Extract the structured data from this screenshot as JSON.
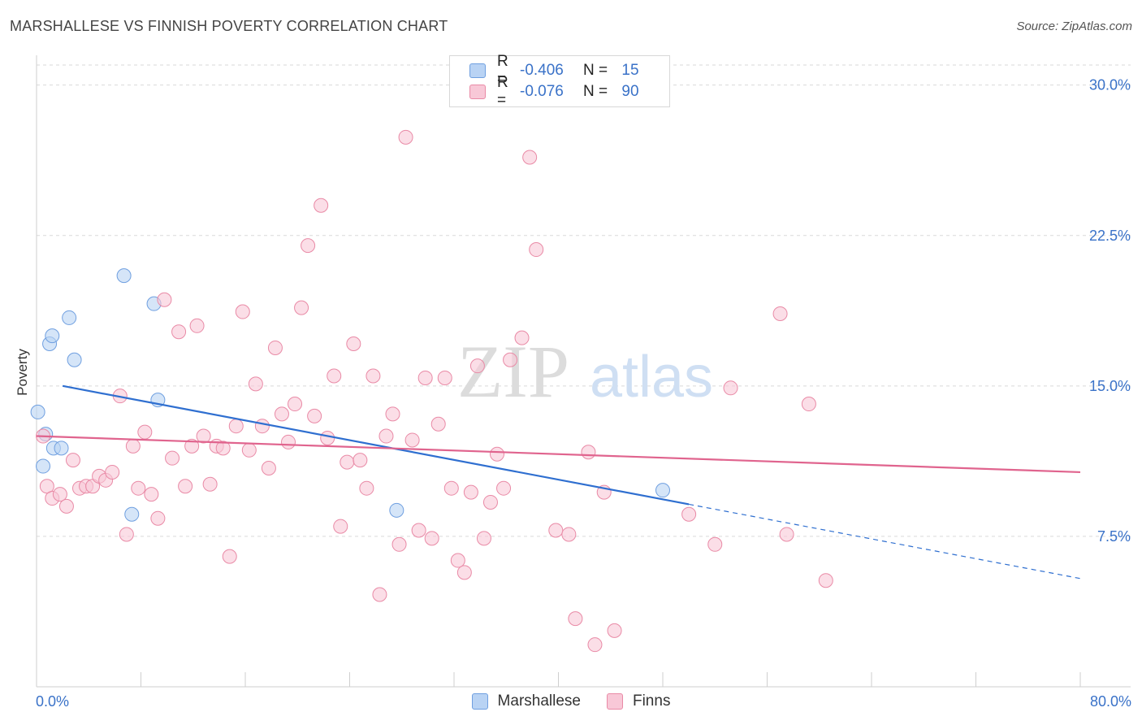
{
  "header": {
    "title": "MARSHALLESE VS FINNISH POVERTY CORRELATION CHART",
    "source": "Source: ZipAtlas.com"
  },
  "watermark": {
    "zip": "ZIP",
    "atlas": "atlas"
  },
  "legend": {
    "rows": [
      {
        "r_label": "R =",
        "r_value": "-0.406",
        "n_label": "N =",
        "n_value": "15",
        "color": "#a9c7f0",
        "border": "#6f9fe0"
      },
      {
        "r_label": "R =",
        "r_value": "-0.076",
        "n_label": "N =",
        "n_value": "90",
        "color": "#f5b8cc",
        "border": "#e8849f"
      }
    ]
  },
  "colors": {
    "blue_fill": "#b9d3f4",
    "blue_stroke": "#6f9fe0",
    "blue_line": "#2f6fd0",
    "pink_fill": "#f8c8d7",
    "pink_stroke": "#e98aa6",
    "pink_line": "#e0648e",
    "grid": "#d9d9d9",
    "axis_label": "#3a72c8"
  },
  "chart_data": {
    "type": "scatter",
    "title": "MARSHALLESE VS FINNISH POVERTY CORRELATION CHART",
    "xlabel": "",
    "ylabel": "Poverty",
    "xlim": [
      0,
      80
    ],
    "ylim": [
      0,
      31
    ],
    "x_tick_labels": [
      "0.0%",
      "80.0%"
    ],
    "y_ticks": [
      7.5,
      15.0,
      22.5,
      30.0
    ],
    "y_tick_labels": [
      "7.5%",
      "15.0%",
      "22.5%",
      "30.0%"
    ],
    "grid": true,
    "legend_position": "bottom",
    "series": [
      {
        "name": "Marshallese",
        "r": -0.406,
        "n": 15,
        "trend": {
          "x_solid": [
            2.0,
            50.0
          ],
          "y_solid": [
            15.0,
            9.1
          ],
          "x_dash": [
            50.0,
            80.0
          ],
          "y_dash": [
            9.1,
            5.4
          ]
        },
        "points": [
          [
            0.1,
            13.7
          ],
          [
            0.5,
            11.0
          ],
          [
            0.7,
            12.6
          ],
          [
            1.0,
            17.1
          ],
          [
            1.2,
            17.5
          ],
          [
            1.3,
            11.9
          ],
          [
            1.9,
            11.9
          ],
          [
            2.5,
            18.4
          ],
          [
            2.9,
            16.3
          ],
          [
            6.7,
            20.5
          ],
          [
            7.3,
            8.6
          ],
          [
            9.0,
            19.1
          ],
          [
            9.3,
            14.3
          ],
          [
            27.6,
            8.8
          ],
          [
            48.0,
            9.8
          ]
        ]
      },
      {
        "name": "Finns",
        "r": -0.076,
        "n": 90,
        "trend": {
          "x_solid": [
            0.0,
            80.0
          ],
          "y_solid": [
            12.5,
            10.7
          ]
        },
        "points": [
          [
            0.5,
            12.5
          ],
          [
            0.8,
            10.0
          ],
          [
            1.2,
            9.4
          ],
          [
            1.8,
            9.6
          ],
          [
            2.3,
            9.0
          ],
          [
            2.8,
            11.3
          ],
          [
            3.3,
            9.9
          ],
          [
            3.8,
            10.0
          ],
          [
            4.3,
            10.0
          ],
          [
            4.8,
            10.5
          ],
          [
            5.3,
            10.3
          ],
          [
            5.8,
            10.7
          ],
          [
            6.4,
            14.5
          ],
          [
            6.9,
            7.6
          ],
          [
            7.4,
            12.0
          ],
          [
            7.8,
            9.9
          ],
          [
            8.3,
            12.7
          ],
          [
            8.8,
            9.6
          ],
          [
            9.3,
            8.4
          ],
          [
            9.8,
            19.3
          ],
          [
            10.4,
            11.4
          ],
          [
            10.9,
            17.7
          ],
          [
            11.4,
            10.0
          ],
          [
            11.9,
            12.0
          ],
          [
            12.3,
            18.0
          ],
          [
            12.8,
            12.5
          ],
          [
            13.3,
            10.1
          ],
          [
            13.8,
            12.0
          ],
          [
            14.3,
            11.9
          ],
          [
            14.8,
            6.5
          ],
          [
            15.3,
            13.0
          ],
          [
            15.8,
            18.7
          ],
          [
            16.3,
            11.8
          ],
          [
            16.8,
            15.1
          ],
          [
            17.3,
            13.0
          ],
          [
            17.8,
            10.9
          ],
          [
            18.3,
            16.9
          ],
          [
            18.8,
            13.6
          ],
          [
            19.3,
            12.2
          ],
          [
            19.8,
            14.1
          ],
          [
            20.3,
            18.9
          ],
          [
            20.8,
            22.0
          ],
          [
            21.3,
            13.5
          ],
          [
            21.8,
            24.0
          ],
          [
            22.3,
            12.4
          ],
          [
            22.8,
            15.5
          ],
          [
            23.3,
            8.0
          ],
          [
            23.8,
            11.2
          ],
          [
            24.3,
            17.1
          ],
          [
            24.8,
            11.3
          ],
          [
            25.3,
            9.9
          ],
          [
            25.8,
            15.5
          ],
          [
            26.3,
            4.6
          ],
          [
            26.8,
            12.5
          ],
          [
            27.3,
            13.6
          ],
          [
            27.8,
            7.1
          ],
          [
            28.3,
            27.4
          ],
          [
            28.8,
            12.3
          ],
          [
            29.3,
            7.8
          ],
          [
            29.8,
            15.4
          ],
          [
            30.3,
            7.4
          ],
          [
            30.8,
            13.1
          ],
          [
            31.3,
            15.4
          ],
          [
            31.8,
            9.9
          ],
          [
            32.3,
            6.3
          ],
          [
            32.8,
            5.7
          ],
          [
            33.3,
            9.7
          ],
          [
            33.8,
            16.0
          ],
          [
            34.3,
            7.4
          ],
          [
            34.8,
            9.2
          ],
          [
            35.3,
            11.6
          ],
          [
            35.8,
            9.9
          ],
          [
            36.3,
            16.3
          ],
          [
            37.2,
            17.4
          ],
          [
            37.8,
            26.4
          ],
          [
            38.3,
            21.8
          ],
          [
            39.8,
            7.8
          ],
          [
            40.8,
            7.6
          ],
          [
            41.3,
            3.4
          ],
          [
            42.3,
            11.7
          ],
          [
            42.8,
            2.1
          ],
          [
            43.5,
            9.7
          ],
          [
            44.3,
            2.8
          ],
          [
            50.0,
            8.6
          ],
          [
            52.0,
            7.1
          ],
          [
            53.2,
            14.9
          ],
          [
            57.0,
            18.6
          ],
          [
            57.5,
            7.6
          ],
          [
            59.2,
            14.1
          ],
          [
            60.5,
            5.3
          ]
        ]
      }
    ]
  }
}
